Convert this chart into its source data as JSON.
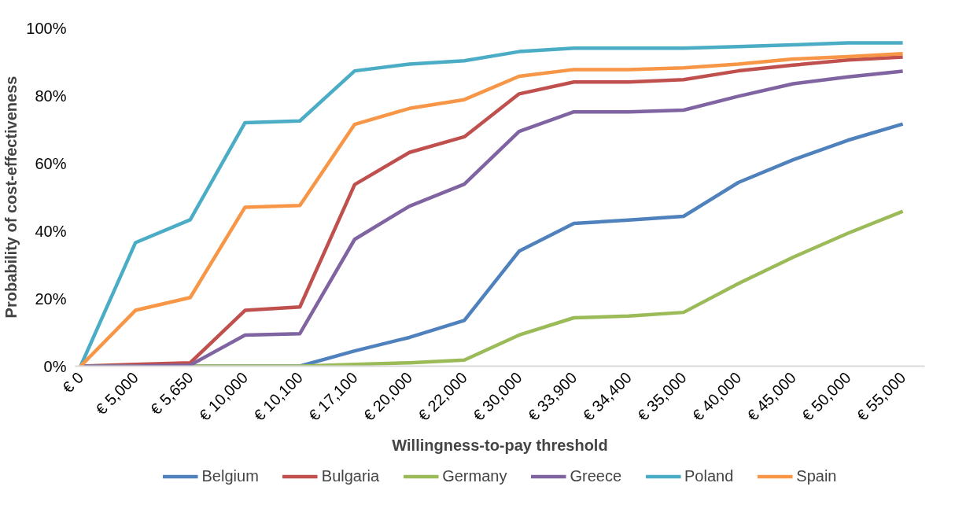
{
  "chart_data": {
    "type": "line",
    "xlabel": "Willingness-to-pay threshold",
    "ylabel": "Probability of cost-effectiveness",
    "categories": [
      "€ 0",
      "€ 5,000",
      "€ 5,650",
      "€ 10,000",
      "€ 10,100",
      "€ 17,100",
      "€ 20,000",
      "€ 22,000",
      "€ 30,000",
      "€ 33,900",
      "€ 34,400",
      "€ 35,000",
      "€ 40,000",
      "€ 45,000",
      "€ 50,000",
      "€ 55,000"
    ],
    "series": [
      {
        "name": "Belgium",
        "color": "#4f81bd",
        "values": [
          0,
          0,
          0,
          0,
          0,
          4.5,
          8.5,
          13.5,
          34,
          42.2,
          43.2,
          44.3,
          54.3,
          61,
          66.8,
          71.6
        ]
      },
      {
        "name": "Bulgaria",
        "color": "#c0504d",
        "values": [
          0,
          0.5,
          1,
          16.5,
          17.5,
          53.7,
          63.2,
          67.8,
          80.5,
          84,
          84,
          84.7,
          87.3,
          89,
          90.5,
          91.4
        ]
      },
      {
        "name": "Germany",
        "color": "#9bbb59",
        "values": [
          0,
          0,
          0,
          0,
          0,
          0.5,
          1,
          1.8,
          9.2,
          14.3,
          14.8,
          15.9,
          24.4,
          32.2,
          39.3,
          45.8
        ]
      },
      {
        "name": "Greece",
        "color": "#8064a2",
        "values": [
          0,
          0,
          0.3,
          9.2,
          9.6,
          37.5,
          47.3,
          53.8,
          69.4,
          75.2,
          75.2,
          75.7,
          79.8,
          83.5,
          85.5,
          87.2
        ]
      },
      {
        "name": "Poland",
        "color": "#4bacc6",
        "values": [
          0,
          36.5,
          43.3,
          72,
          72.5,
          87.3,
          89.3,
          90.3,
          93,
          94,
          94,
          94,
          94.5,
          95,
          95.6,
          95.6
        ]
      },
      {
        "name": "Spain",
        "color": "#f79646",
        "values": [
          0,
          16.5,
          20.3,
          47,
          47.5,
          71.5,
          76.2,
          78.8,
          85.7,
          87.7,
          87.7,
          88.2,
          89.3,
          90.8,
          91.5,
          92.4
        ]
      }
    ],
    "ylim": [
      0,
      100
    ],
    "yticks": [
      {
        "value": 0,
        "label": "0%"
      },
      {
        "value": 20,
        "label": "20%"
      },
      {
        "value": 40,
        "label": "40%"
      },
      {
        "value": 60,
        "label": "60%"
      },
      {
        "value": 80,
        "label": "80%"
      },
      {
        "value": 100,
        "label": "100%"
      }
    ],
    "legend": "bottom",
    "grid": false,
    "marker": "none",
    "line_style": "solid"
  }
}
